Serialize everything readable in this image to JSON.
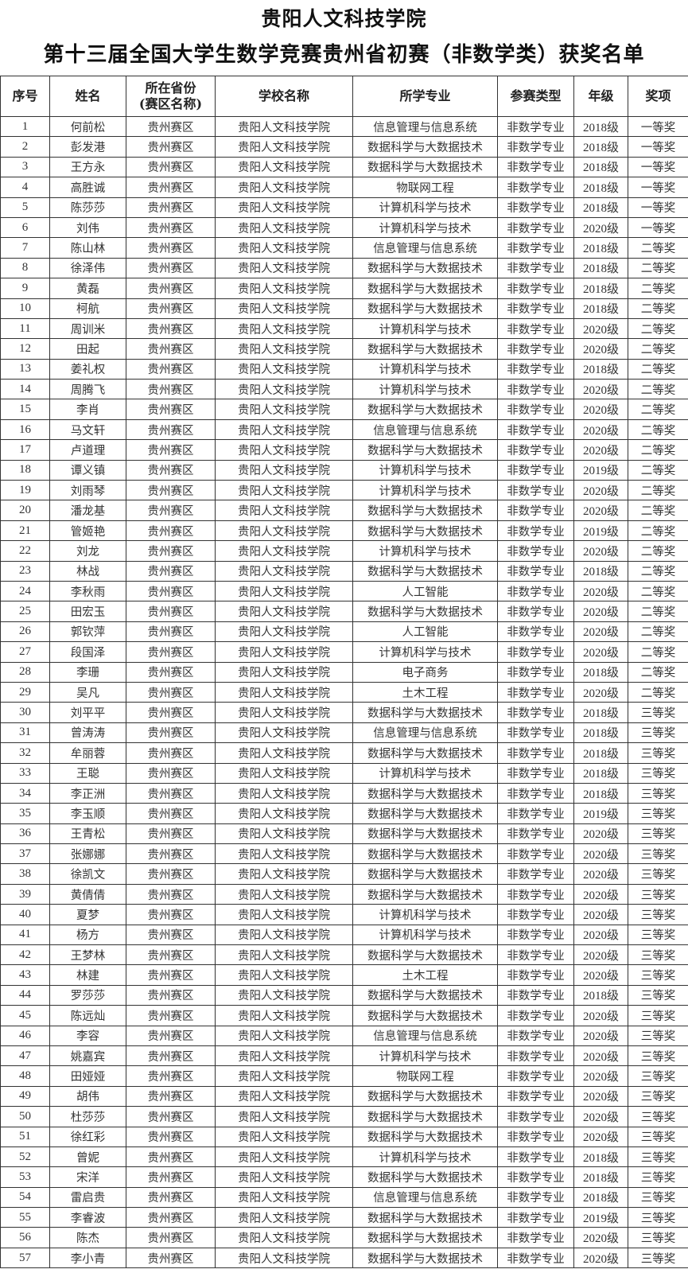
{
  "title_line1": "贵阳人文科技学院",
  "title_line2": "第十三届全国大学生数学竞赛贵州省初赛（非数学类）获奖名单",
  "headers": [
    "序号",
    "姓名",
    "所在省份\n(赛区名称)",
    "学校名称",
    "所学专业",
    "参赛类型",
    "年级",
    "奖项"
  ],
  "rows": [
    [
      "1",
      "何前松",
      "贵州赛区",
      "贵阳人文科技学院",
      "信息管理与信息系统",
      "非数学专业",
      "2018级",
      "一等奖"
    ],
    [
      "2",
      "彭发港",
      "贵州赛区",
      "贵阳人文科技学院",
      "数据科学与大数据技术",
      "非数学专业",
      "2018级",
      "一等奖"
    ],
    [
      "3",
      "王方永",
      "贵州赛区",
      "贵阳人文科技学院",
      "数据科学与大数据技术",
      "非数学专业",
      "2018级",
      "一等奖"
    ],
    [
      "4",
      "高胜诚",
      "贵州赛区",
      "贵阳人文科技学院",
      "物联网工程",
      "非数学专业",
      "2018级",
      "一等奖"
    ],
    [
      "5",
      "陈莎莎",
      "贵州赛区",
      "贵阳人文科技学院",
      "计算机科学与技术",
      "非数学专业",
      "2018级",
      "一等奖"
    ],
    [
      "6",
      "刘伟",
      "贵州赛区",
      "贵阳人文科技学院",
      "计算机科学与技术",
      "非数学专业",
      "2020级",
      "一等奖"
    ],
    [
      "7",
      "陈山林",
      "贵州赛区",
      "贵阳人文科技学院",
      "信息管理与信息系统",
      "非数学专业",
      "2018级",
      "二等奖"
    ],
    [
      "8",
      "徐泽伟",
      "贵州赛区",
      "贵阳人文科技学院",
      "数据科学与大数据技术",
      "非数学专业",
      "2018级",
      "二等奖"
    ],
    [
      "9",
      "黄磊",
      "贵州赛区",
      "贵阳人文科技学院",
      "数据科学与大数据技术",
      "非数学专业",
      "2018级",
      "二等奖"
    ],
    [
      "10",
      "柯航",
      "贵州赛区",
      "贵阳人文科技学院",
      "数据科学与大数据技术",
      "非数学专业",
      "2018级",
      "二等奖"
    ],
    [
      "11",
      "周训米",
      "贵州赛区",
      "贵阳人文科技学院",
      "计算机科学与技术",
      "非数学专业",
      "2020级",
      "二等奖"
    ],
    [
      "12",
      "田起",
      "贵州赛区",
      "贵阳人文科技学院",
      "数据科学与大数据技术",
      "非数学专业",
      "2020级",
      "二等奖"
    ],
    [
      "13",
      "姜礼权",
      "贵州赛区",
      "贵阳人文科技学院",
      "计算机科学与技术",
      "非数学专业",
      "2018级",
      "二等奖"
    ],
    [
      "14",
      "周腾飞",
      "贵州赛区",
      "贵阳人文科技学院",
      "计算机科学与技术",
      "非数学专业",
      "2020级",
      "二等奖"
    ],
    [
      "15",
      "李肖",
      "贵州赛区",
      "贵阳人文科技学院",
      "数据科学与大数据技术",
      "非数学专业",
      "2020级",
      "二等奖"
    ],
    [
      "16",
      "马文轩",
      "贵州赛区",
      "贵阳人文科技学院",
      "信息管理与信息系统",
      "非数学专业",
      "2020级",
      "二等奖"
    ],
    [
      "17",
      "卢道理",
      "贵州赛区",
      "贵阳人文科技学院",
      "数据科学与大数据技术",
      "非数学专业",
      "2020级",
      "二等奖"
    ],
    [
      "18",
      "谭义镇",
      "贵州赛区",
      "贵阳人文科技学院",
      "计算机科学与技术",
      "非数学专业",
      "2019级",
      "二等奖"
    ],
    [
      "19",
      "刘雨琴",
      "贵州赛区",
      "贵阳人文科技学院",
      "计算机科学与技术",
      "非数学专业",
      "2020级",
      "二等奖"
    ],
    [
      "20",
      "潘龙基",
      "贵州赛区",
      "贵阳人文科技学院",
      "数据科学与大数据技术",
      "非数学专业",
      "2020级",
      "二等奖"
    ],
    [
      "21",
      "管姬艳",
      "贵州赛区",
      "贵阳人文科技学院",
      "数据科学与大数据技术",
      "非数学专业",
      "2019级",
      "二等奖"
    ],
    [
      "22",
      "刘龙",
      "贵州赛区",
      "贵阳人文科技学院",
      "计算机科学与技术",
      "非数学专业",
      "2020级",
      "二等奖"
    ],
    [
      "23",
      "林战",
      "贵州赛区",
      "贵阳人文科技学院",
      "数据科学与大数据技术",
      "非数学专业",
      "2018级",
      "二等奖"
    ],
    [
      "24",
      "李秋雨",
      "贵州赛区",
      "贵阳人文科技学院",
      "人工智能",
      "非数学专业",
      "2020级",
      "二等奖"
    ],
    [
      "25",
      "田宏玉",
      "贵州赛区",
      "贵阳人文科技学院",
      "数据科学与大数据技术",
      "非数学专业",
      "2020级",
      "二等奖"
    ],
    [
      "26",
      "郭钦萍",
      "贵州赛区",
      "贵阳人文科技学院",
      "人工智能",
      "非数学专业",
      "2020级",
      "二等奖"
    ],
    [
      "27",
      "段国泽",
      "贵州赛区",
      "贵阳人文科技学院",
      "计算机科学与技术",
      "非数学专业",
      "2020级",
      "二等奖"
    ],
    [
      "28",
      "李珊",
      "贵州赛区",
      "贵阳人文科技学院",
      "电子商务",
      "非数学专业",
      "2018级",
      "二等奖"
    ],
    [
      "29",
      "吴凡",
      "贵州赛区",
      "贵阳人文科技学院",
      "土木工程",
      "非数学专业",
      "2020级",
      "二等奖"
    ],
    [
      "30",
      "刘平平",
      "贵州赛区",
      "贵阳人文科技学院",
      "数据科学与大数据技术",
      "非数学专业",
      "2018级",
      "三等奖"
    ],
    [
      "31",
      "曾涛涛",
      "贵州赛区",
      "贵阳人文科技学院",
      "信息管理与信息系统",
      "非数学专业",
      "2018级",
      "三等奖"
    ],
    [
      "32",
      "牟丽蓉",
      "贵州赛区",
      "贵阳人文科技学院",
      "数据科学与大数据技术",
      "非数学专业",
      "2018级",
      "三等奖"
    ],
    [
      "33",
      "王聪",
      "贵州赛区",
      "贵阳人文科技学院",
      "计算机科学与技术",
      "非数学专业",
      "2018级",
      "三等奖"
    ],
    [
      "34",
      "李正洲",
      "贵州赛区",
      "贵阳人文科技学院",
      "数据科学与大数据技术",
      "非数学专业",
      "2018级",
      "三等奖"
    ],
    [
      "35",
      "李玉顺",
      "贵州赛区",
      "贵阳人文科技学院",
      "数据科学与大数据技术",
      "非数学专业",
      "2019级",
      "三等奖"
    ],
    [
      "36",
      "王青松",
      "贵州赛区",
      "贵阳人文科技学院",
      "数据科学与大数据技术",
      "非数学专业",
      "2020级",
      "三等奖"
    ],
    [
      "37",
      "张娜娜",
      "贵州赛区",
      "贵阳人文科技学院",
      "数据科学与大数据技术",
      "非数学专业",
      "2020级",
      "三等奖"
    ],
    [
      "38",
      "徐凯文",
      "贵州赛区",
      "贵阳人文科技学院",
      "数据科学与大数据技术",
      "非数学专业",
      "2020级",
      "三等奖"
    ],
    [
      "39",
      "黄倩倩",
      "贵州赛区",
      "贵阳人文科技学院",
      "数据科学与大数据技术",
      "非数学专业",
      "2020级",
      "三等奖"
    ],
    [
      "40",
      "夏梦",
      "贵州赛区",
      "贵阳人文科技学院",
      "计算机科学与技术",
      "非数学专业",
      "2020级",
      "三等奖"
    ],
    [
      "41",
      "杨方",
      "贵州赛区",
      "贵阳人文科技学院",
      "计算机科学与技术",
      "非数学专业",
      "2020级",
      "三等奖"
    ],
    [
      "42",
      "王梦林",
      "贵州赛区",
      "贵阳人文科技学院",
      "数据科学与大数据技术",
      "非数学专业",
      "2020级",
      "三等奖"
    ],
    [
      "43",
      "林建",
      "贵州赛区",
      "贵阳人文科技学院",
      "土木工程",
      "非数学专业",
      "2020级",
      "三等奖"
    ],
    [
      "44",
      "罗莎莎",
      "贵州赛区",
      "贵阳人文科技学院",
      "数据科学与大数据技术",
      "非数学专业",
      "2018级",
      "三等奖"
    ],
    [
      "45",
      "陈远灿",
      "贵州赛区",
      "贵阳人文科技学院",
      "数据科学与大数据技术",
      "非数学专业",
      "2020级",
      "三等奖"
    ],
    [
      "46",
      "李容",
      "贵州赛区",
      "贵阳人文科技学院",
      "信息管理与信息系统",
      "非数学专业",
      "2020级",
      "三等奖"
    ],
    [
      "47",
      "姚嘉宾",
      "贵州赛区",
      "贵阳人文科技学院",
      "计算机科学与技术",
      "非数学专业",
      "2020级",
      "三等奖"
    ],
    [
      "48",
      "田娅娅",
      "贵州赛区",
      "贵阳人文科技学院",
      "物联网工程",
      "非数学专业",
      "2020级",
      "三等奖"
    ],
    [
      "49",
      "胡伟",
      "贵州赛区",
      "贵阳人文科技学院",
      "数据科学与大数据技术",
      "非数学专业",
      "2020级",
      "三等奖"
    ],
    [
      "50",
      "杜莎莎",
      "贵州赛区",
      "贵阳人文科技学院",
      "数据科学与大数据技术",
      "非数学专业",
      "2020级",
      "三等奖"
    ],
    [
      "51",
      "徐红彩",
      "贵州赛区",
      "贵阳人文科技学院",
      "数据科学与大数据技术",
      "非数学专业",
      "2020级",
      "三等奖"
    ],
    [
      "52",
      "曾妮",
      "贵州赛区",
      "贵阳人文科技学院",
      "计算机科学与技术",
      "非数学专业",
      "2018级",
      "三等奖"
    ],
    [
      "53",
      "宋洋",
      "贵州赛区",
      "贵阳人文科技学院",
      "数据科学与大数据技术",
      "非数学专业",
      "2018级",
      "三等奖"
    ],
    [
      "54",
      "雷启贵",
      "贵州赛区",
      "贵阳人文科技学院",
      "信息管理与信息系统",
      "非数学专业",
      "2018级",
      "三等奖"
    ],
    [
      "55",
      "李睿波",
      "贵州赛区",
      "贵阳人文科技学院",
      "数据科学与大数据技术",
      "非数学专业",
      "2019级",
      "三等奖"
    ],
    [
      "56",
      "陈杰",
      "贵州赛区",
      "贵阳人文科技学院",
      "数据科学与大数据技术",
      "非数学专业",
      "2020级",
      "三等奖"
    ],
    [
      "57",
      "李小青",
      "贵州赛区",
      "贵阳人文科技学院",
      "数据科学与大数据技术",
      "非数学专业",
      "2020级",
      "三等奖"
    ]
  ]
}
